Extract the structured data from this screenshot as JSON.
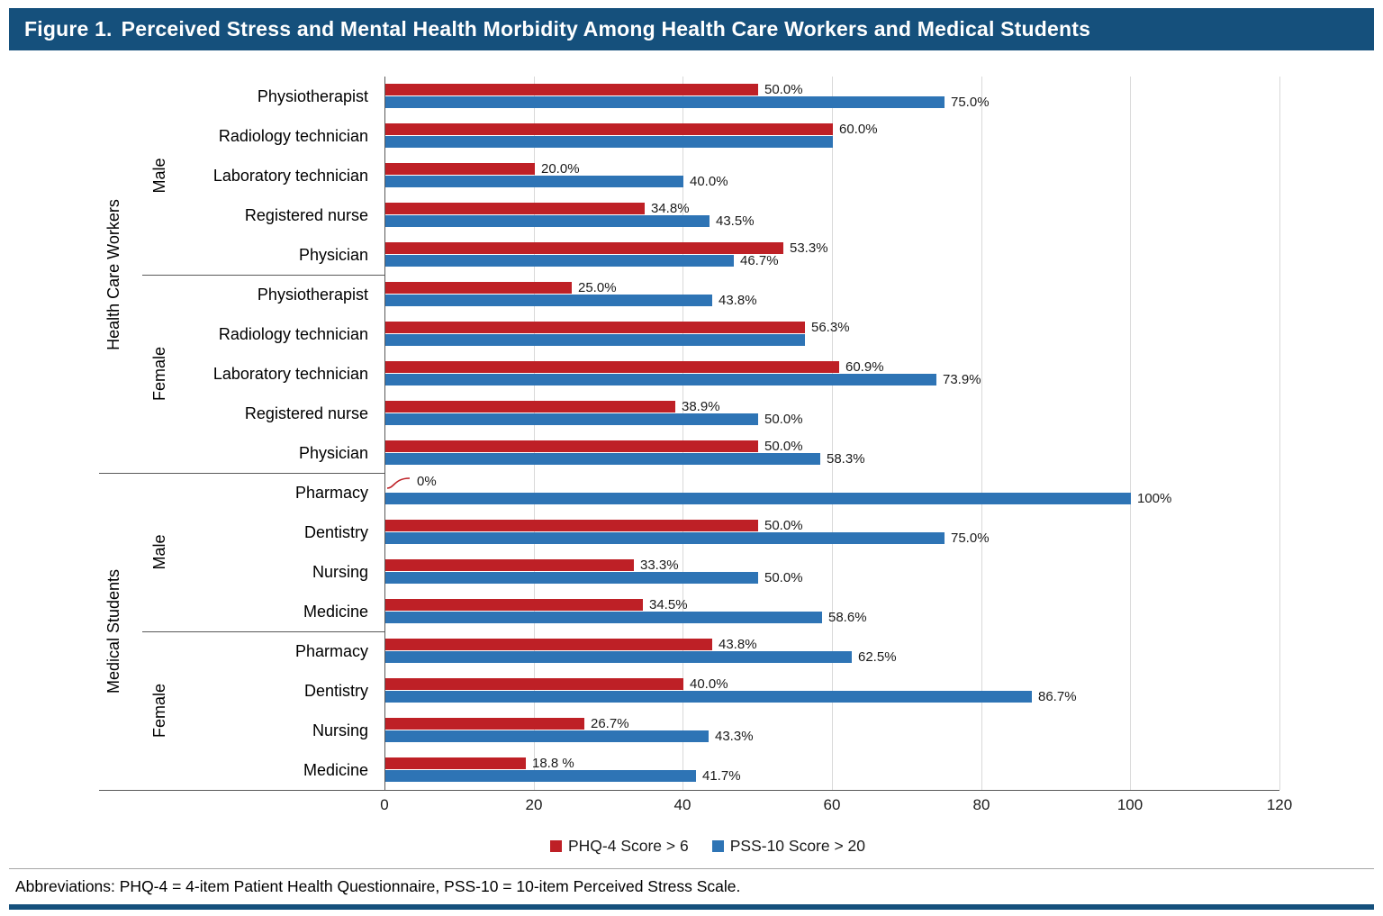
{
  "title": {
    "label": "Figure 1.",
    "text": "Perceived Stress and Mental Health Morbidity Among Health Care Workers and Medical Students"
  },
  "footer": {
    "abbreviations": "Abbreviations: PHQ-4 = 4-item Patient Health Questionnaire, PSS-10 = 10-item Perceived Stress Scale."
  },
  "colors": {
    "header_navy": "#15507C",
    "phq4_red": "#BE2026",
    "pss10_blue": "#2E74B5",
    "gridline_gray": "#D9D9D9",
    "axis_gray": "#595959"
  },
  "chart_data": {
    "type": "bar",
    "orientation": "horizontal",
    "title": "Figure 1. Perceived Stress and Mental Health Morbidity Among Health Care Workers and Medical Students",
    "xlabel": "",
    "ylabel": "",
    "value_suffix": "%",
    "xlim": [
      0,
      120
    ],
    "xticks": [
      0,
      20,
      40,
      60,
      80,
      100,
      120
    ],
    "grid": true,
    "legend_position": "bottom",
    "series": [
      {
        "name": "PHQ-4 Score > 6",
        "color": "#BE2026"
      },
      {
        "name": "PSS-10 Score > 20",
        "color": "#2E74B5"
      }
    ],
    "groups": [
      {
        "group": "Health Care Workers",
        "subgroups": [
          {
            "name": "Male",
            "rows": [
              {
                "category": "Physiotherapist",
                "phq4": 50.0,
                "phq4_label": "50.0%",
                "pss10": 75.0,
                "pss10_label": "75.0%"
              },
              {
                "category": "Radiology technician",
                "phq4": 60.0,
                "phq4_label": "60.0%",
                "pss10": 60.0,
                "pss10_label": ""
              },
              {
                "category": "Laboratory technician",
                "phq4": 20.0,
                "phq4_label": "20.0%",
                "pss10": 40.0,
                "pss10_label": "40.0%"
              },
              {
                "category": "Registered nurse",
                "phq4": 34.8,
                "phq4_label": "34.8%",
                "pss10": 43.5,
                "pss10_label": "43.5%"
              },
              {
                "category": "Physician",
                "phq4": 53.3,
                "phq4_label": "53.3%",
                "pss10": 46.7,
                "pss10_label": "46.7%"
              }
            ]
          },
          {
            "name": "Female",
            "rows": [
              {
                "category": "Physiotherapist",
                "phq4": 25.0,
                "phq4_label": "25.0%",
                "pss10": 43.8,
                "pss10_label": "43.8%"
              },
              {
                "category": "Radiology technician",
                "phq4": 56.3,
                "phq4_label": "56.3%",
                "pss10": 56.3,
                "pss10_label": ""
              },
              {
                "category": "Laboratory technician",
                "phq4": 60.9,
                "phq4_label": "60.9%",
                "pss10": 73.9,
                "pss10_label": "73.9%"
              },
              {
                "category": "Registered nurse",
                "phq4": 38.9,
                "phq4_label": "38.9%",
                "pss10": 50.0,
                "pss10_label": "50.0%"
              },
              {
                "category": "Physician",
                "phq4": 50.0,
                "phq4_label": "50.0%",
                "pss10": 58.3,
                "pss10_label": "58.3%"
              }
            ]
          }
        ]
      },
      {
        "group": "Medical Students",
        "subgroups": [
          {
            "name": "Male",
            "rows": [
              {
                "category": "Pharmacy",
                "phq4": 0,
                "phq4_label": "0%",
                "pss10": 100,
                "pss10_label": "100%"
              },
              {
                "category": "Dentistry",
                "phq4": 50.0,
                "phq4_label": "50.0%",
                "pss10": 75.0,
                "pss10_label": "75.0%"
              },
              {
                "category": "Nursing",
                "phq4": 33.3,
                "phq4_label": "33.3%",
                "pss10": 50.0,
                "pss10_label": "50.0%"
              },
              {
                "category": "Medicine",
                "phq4": 34.5,
                "phq4_label": "34.5%",
                "pss10": 58.6,
                "pss10_label": "58.6%"
              }
            ]
          },
          {
            "name": "Female",
            "rows": [
              {
                "category": "Pharmacy",
                "phq4": 43.8,
                "phq4_label": "43.8%",
                "pss10": 62.5,
                "pss10_label": "62.5%"
              },
              {
                "category": "Dentistry",
                "phq4": 40.0,
                "phq4_label": "40.0%",
                "pss10": 86.7,
                "pss10_label": "86.7%"
              },
              {
                "category": "Nursing",
                "phq4": 26.7,
                "phq4_label": "26.7%",
                "pss10": 43.3,
                "pss10_label": "43.3%"
              },
              {
                "category": "Medicine",
                "phq4": 18.8,
                "phq4_label": "18.8 %",
                "pss10": 41.7,
                "pss10_label": "41.7%"
              }
            ]
          }
        ]
      }
    ]
  }
}
